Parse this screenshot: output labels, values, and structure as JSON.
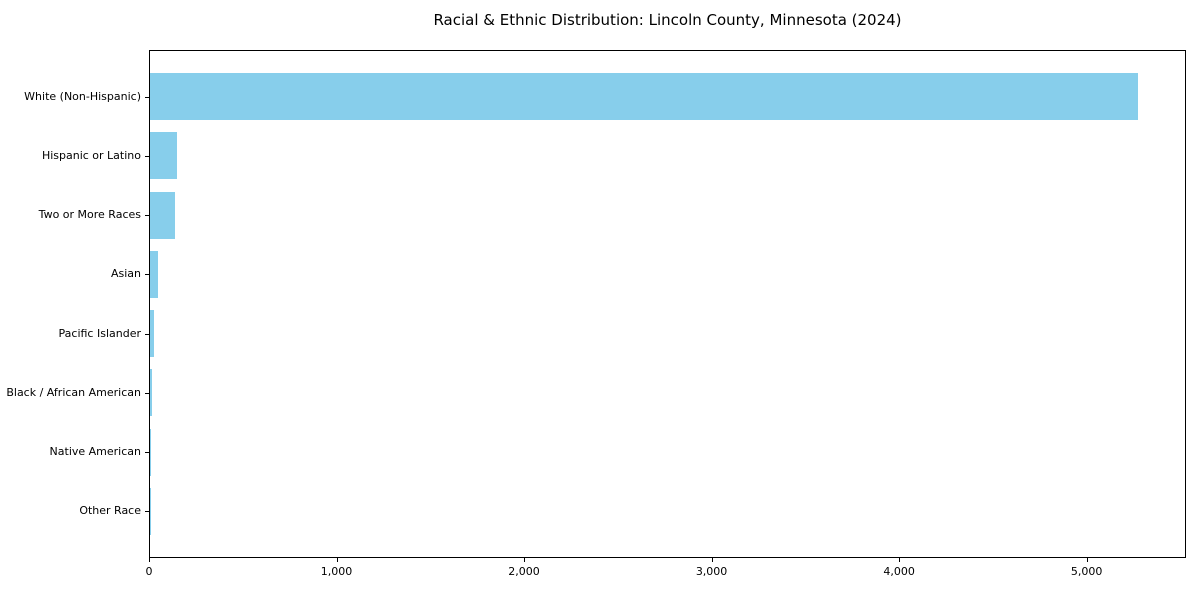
{
  "title": "Racial & Ethnic Distribution: Lincoln County, Minnesota (2024)",
  "chart_data": {
    "type": "bar",
    "orientation": "horizontal",
    "title": "Racial & Ethnic Distribution: Lincoln County, Minnesota (2024)",
    "categories": [
      "White (Non-Hispanic)",
      "Hispanic or Latino",
      "Two or More Races",
      "Asian",
      "Pacific Islander",
      "Black / African American",
      "Native American",
      "Other Race"
    ],
    "values": [
      5270,
      145,
      135,
      41,
      20,
      8,
      6,
      2
    ],
    "xlabel": "",
    "ylabel": "",
    "xlim": [
      0,
      5530
    ],
    "x_ticks": [
      0,
      1000,
      2000,
      3000,
      4000,
      5000
    ],
    "x_tick_labels": [
      "0",
      "1,000",
      "2,000",
      "3,000",
      "4,000",
      "5,000"
    ],
    "bar_color": "#87CEEB",
    "background_color": "#ffffff",
    "spine_color": "#000000",
    "grid": false,
    "legend": null
  }
}
